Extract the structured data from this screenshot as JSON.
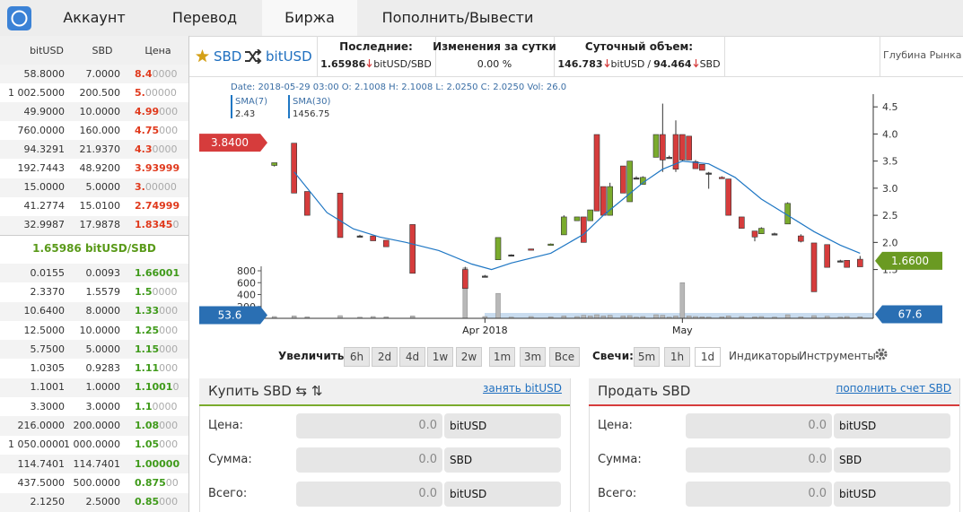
{
  "nav": {
    "tabs": [
      "Аккаунт",
      "Перевод",
      "Биржа",
      "Пополнить/Вывести"
    ],
    "active": 2
  },
  "orderbook": {
    "headers": [
      "bitUSD",
      "SBD",
      "Цена"
    ],
    "asks": [
      [
        "58.8000",
        "7.0000",
        [
          "8.4",
          "0000"
        ]
      ],
      [
        "1 002.5000",
        "200.500",
        [
          "5.",
          "00000"
        ]
      ],
      [
        "49.9000",
        "10.0000",
        [
          "4.99",
          "000"
        ]
      ],
      [
        "760.0000",
        "160.000",
        [
          "4.75",
          "000"
        ]
      ],
      [
        "94.3291",
        "21.9370",
        [
          "4.3",
          "0000"
        ]
      ],
      [
        "192.7443",
        "48.9200",
        [
          "3.93999"
        ]
      ],
      [
        "15.0000",
        "5.0000",
        [
          "3.",
          "00000"
        ]
      ],
      [
        "41.2774",
        "15.0100",
        [
          "2.74999"
        ]
      ],
      [
        "32.9987",
        "17.9878",
        [
          "1.8345",
          "0"
        ]
      ]
    ],
    "last": "1.65986 bitUSD/SBD",
    "bids": [
      [
        "0.0155",
        "0.0093",
        [
          "1.66001"
        ]
      ],
      [
        "2.3370",
        "1.5579",
        [
          "1.5",
          "0000"
        ]
      ],
      [
        "10.6400",
        "8.0000",
        [
          "1.33",
          "000"
        ]
      ],
      [
        "12.5000",
        "10.0000",
        [
          "1.25",
          "000"
        ]
      ],
      [
        "5.7500",
        "5.0000",
        [
          "1.15",
          "000"
        ]
      ],
      [
        "1.0305",
        "0.9283",
        [
          "1.11",
          "000"
        ]
      ],
      [
        "1.1001",
        "1.0000",
        [
          "1.1001",
          "0"
        ]
      ],
      [
        "3.3000",
        "3.0000",
        [
          "1.1",
          "0000"
        ]
      ],
      [
        "216.0000",
        "200.0000",
        [
          "1.08",
          "000"
        ]
      ],
      [
        "1 050.0000",
        "1 000.0000",
        [
          "1.05",
          "000"
        ]
      ],
      [
        "114.7401",
        "114.7401",
        [
          "1.00000"
        ]
      ],
      [
        "437.5000",
        "500.0000",
        [
          "0.875",
          "00"
        ]
      ],
      [
        "2.1250",
        "2.5000",
        [
          "0.85",
          "000"
        ]
      ]
    ]
  },
  "market": {
    "base": "SBD",
    "quote": "bitUSD",
    "last": {
      "label": "Последние:",
      "value": "1.65986",
      "unit": "bitUSD/SBD"
    },
    "change": {
      "label": "Изменения за сутки",
      "value": "0.00 %"
    },
    "volume": {
      "label": "Суточный объем:",
      "value": "146.783",
      "unit": "bitUSD",
      "sep": "/",
      "value2": "94.464",
      "unit2": "SBD"
    },
    "depth": "Глубина Рынка"
  },
  "chart_data": {
    "type": "candlestick",
    "info": "Date: 2018-05-29 03:00 O: 2.1008 H: 2.1008 L: 2.0250 C: 2.0250 Vol: 26.0",
    "indicators": [
      {
        "name": "SMA(7)",
        "value": "2.43"
      },
      {
        "name": "SMA(30)",
        "value": "1456.75"
      }
    ],
    "x": [
      0,
      3,
      5,
      10,
      13,
      15,
      17,
      21,
      29,
      32,
      34,
      36,
      39,
      42,
      44,
      46,
      47,
      48,
      49,
      50,
      51,
      53,
      54,
      55,
      56,
      58,
      59,
      60,
      61,
      62,
      63,
      64,
      65,
      66,
      68,
      69,
      71,
      73,
      74,
      76,
      78,
      80,
      82,
      84,
      86,
      87,
      89
    ],
    "open": [
      3.42,
      3.83,
      2.94,
      2.91,
      2.12,
      2.12,
      2.04,
      2.33,
      1.5,
      1.38,
      1.68,
      1.77,
      1.88,
      1.96,
      2.14,
      2.4,
      2.47,
      2.4,
      3.99,
      3.03,
      2.5,
      3.41,
      2.75,
      3.19,
      3.07,
      3.57,
      3.99,
      3.57,
      3.99,
      3.99,
      3.96,
      3.49,
      3.44,
      3.28,
      3.2,
      3.17,
      2.47,
      2.21,
      2.16,
      2.16,
      2.34,
      2.12,
      1.99,
      1.96,
      1.66,
      1.67,
      1.69
    ],
    "high": [
      3.47,
      3.83,
      2.94,
      2.91,
      2.14,
      2.12,
      2.04,
      2.33,
      1.55,
      1.4,
      2.09,
      1.78,
      1.88,
      1.98,
      2.5,
      2.47,
      2.47,
      2.6,
      3.99,
      3.03,
      3.1,
      3.41,
      3.5,
      3.22,
      3.22,
      3.99,
      4.56,
      3.6,
      4.25,
      3.99,
      3.96,
      3.52,
      3.44,
      3.3,
      3.22,
      3.17,
      2.47,
      2.21,
      2.28,
      2.18,
      2.74,
      2.15,
      1.99,
      1.96,
      1.68,
      1.67,
      1.75
    ],
    "low": [
      3.4,
      2.91,
      2.5,
      2.09,
      2.1,
      2.03,
      1.92,
      1.43,
      1.15,
      1.36,
      1.68,
      1.76,
      1.86,
      1.96,
      2.14,
      2.4,
      2,
      2.4,
      2.58,
      2.5,
      2.5,
      2.91,
      2.75,
      3.17,
      3.07,
      3.57,
      3.3,
      3.55,
      3.3,
      3.5,
      3.52,
      3.36,
      3.33,
      2.99,
      3.18,
      2.5,
      2.26,
      2.02,
      2.16,
      2.14,
      2.34,
      2,
      1.09,
      1.54,
      1.64,
      1.54,
      1.55
    ],
    "close": [
      3.47,
      2.91,
      2.5,
      2.09,
      2.12,
      2.03,
      1.92,
      1.43,
      1.15,
      1.38,
      2.09,
      1.77,
      1.86,
      1.97,
      2.47,
      2.47,
      2,
      2.6,
      2.58,
      2.5,
      3.03,
      2.91,
      3.5,
      3.19,
      3.2,
      3.99,
      3.52,
      3.57,
      3.35,
      3.52,
      3.52,
      3.36,
      3.33,
      3.28,
      3.18,
      2.5,
      2.26,
      2.1,
      2.26,
      2.16,
      2.72,
      2.02,
      1.09,
      1.54,
      1.66,
      1.54,
      1.55
    ],
    "volume": [
      30,
      40,
      25,
      45,
      20,
      30,
      25,
      40,
      850,
      30,
      420,
      20,
      30,
      25,
      40,
      30,
      50,
      40,
      60,
      40,
      50,
      40,
      45,
      20,
      30,
      60,
      50,
      20,
      40,
      600,
      40,
      30,
      25,
      20,
      25,
      40,
      30,
      25,
      30,
      20,
      60,
      25,
      45,
      35,
      20,
      30,
      26
    ],
    "up_color": "#7aab2d",
    "down_color": "#d63c3c",
    "sma": {
      "color": "#1f77c4",
      "x": [
        3,
        8,
        12,
        16,
        20,
        25,
        30,
        33,
        36,
        42,
        47,
        50,
        53,
        56,
        59,
        62,
        66,
        70,
        74,
        78,
        82,
        86,
        89
      ],
      "values": [
        3.3,
        2.55,
        2.25,
        2.1,
        2,
        1.85,
        1.6,
        1.5,
        1.62,
        1.8,
        2.15,
        2.5,
        2.8,
        3.1,
        3.35,
        3.5,
        3.45,
        3.2,
        2.8,
        2.5,
        2.2,
        1.95,
        1.8
      ]
    },
    "xlim": [
      -11,
      91
    ],
    "xticks": [
      {
        "value": 32,
        "label": "Apr 2018"
      },
      {
        "value": 62,
        "label": "May"
      }
    ],
    "ylim": [
      0.6,
      4.9
    ],
    "yticks": [
      1.5,
      {
        "value": 2,
        "label": "2.0"
      },
      2.5,
      {
        "value": 3,
        "label": "3.0"
      },
      3.5,
      {
        "value": 4,
        "label": "4.0"
      },
      4.5
    ],
    "y2lim": [
      0,
      800
    ],
    "y2ticks": [
      200,
      400,
      600,
      800
    ],
    "tags": [
      {
        "value": 3.84,
        "label": "3.8400",
        "color": "#d63c3c",
        "side": "left"
      },
      {
        "value": 1.66,
        "label": "1.6600",
        "color": "#6a9a22",
        "side": "right"
      }
    ],
    "volume_tags": [
      {
        "value": 53.6,
        "side": "left"
      },
      {
        "value": 67.6,
        "side": "right"
      }
    ]
  },
  "controls": {
    "zoom_label": "Увеличить:",
    "zoom": [
      "6h",
      "2d",
      "4d",
      "1w",
      "2w",
      "1m",
      "3m",
      "Все"
    ],
    "candles_label": "Свечи:",
    "candles": [
      "5m",
      "1h",
      "1d"
    ],
    "candles_active": 2,
    "tools": [
      "Индикаторы",
      "Инструменты"
    ]
  },
  "buy": {
    "title": "Купить SBD ⇆ ⇅",
    "link": "занять bitUSD",
    "fields": [
      {
        "label": "Цена:",
        "value": "0.0",
        "unit": "bitUSD"
      },
      {
        "label": "Сумма:",
        "value": "0.0",
        "unit": "SBD"
      },
      {
        "label": "Всего:",
        "value": "0.0",
        "unit": "bitUSD"
      }
    ]
  },
  "sell": {
    "title": "Продать SBD",
    "link": "пополнить счет SBD",
    "fields": [
      {
        "label": "Цена:",
        "value": "0.0",
        "unit": "bitUSD"
      },
      {
        "label": "Сумма:",
        "value": "0.0",
        "unit": "SBD"
      },
      {
        "label": "Всего:",
        "value": "0.0",
        "unit": "bitUSD"
      }
    ]
  }
}
